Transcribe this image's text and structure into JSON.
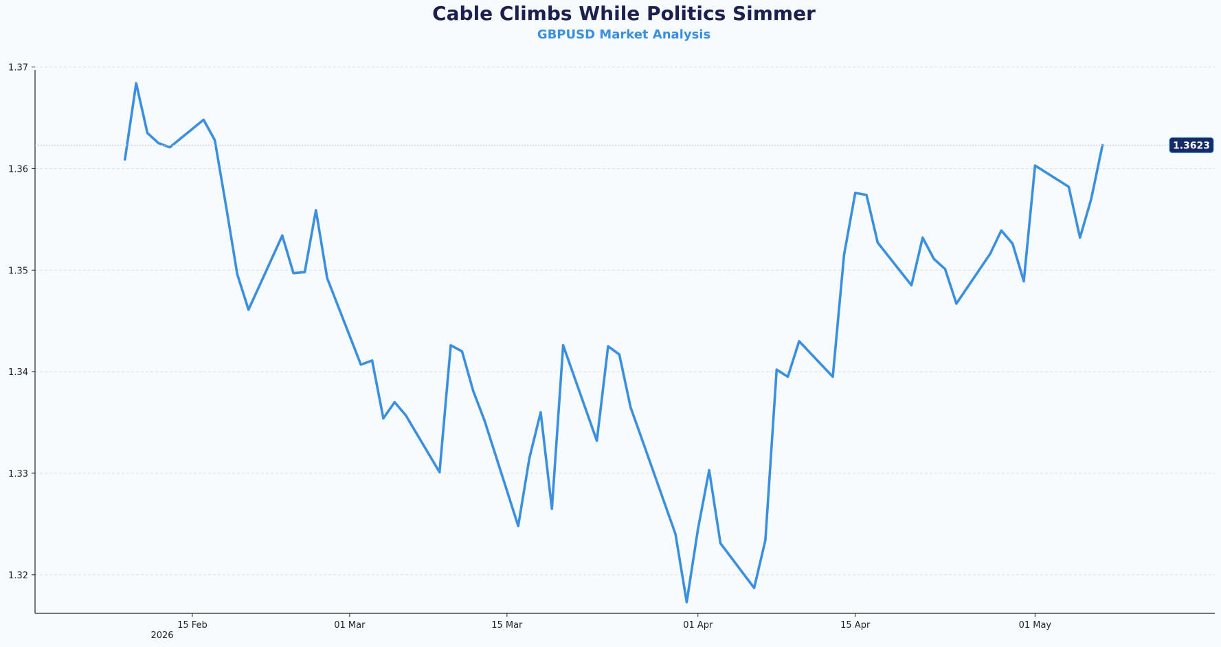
{
  "chart_data": {
    "type": "line",
    "title": "Cable Climbs While Politics Simmer",
    "subtitle": "GBPUSD Market Analysis",
    "xlabel": "",
    "ylabel": "",
    "year_label": "2026",
    "ylim": [
      1.3162,
      1.3697
    ],
    "xlim": [
      "2026-02-01",
      "2026-05-17"
    ],
    "grid": "horizontal dashed",
    "y_ticks": [
      "1.32",
      "1.33",
      "1.34",
      "1.35",
      "1.36",
      "1.37"
    ],
    "x_ticks": [
      {
        "date": "2026-02-15",
        "label": "15 Feb"
      },
      {
        "date": "2026-03-01",
        "label": "01 Mar"
      },
      {
        "date": "2026-03-15",
        "label": "15 Mar"
      },
      {
        "date": "2026-04-01",
        "label": "01 Apr"
      },
      {
        "date": "2026-04-15",
        "label": "15 Apr"
      },
      {
        "date": "2026-05-01",
        "label": "01 May"
      }
    ],
    "last_value_label": "1.3623",
    "colors": {
      "line": "#3a8fe0",
      "title": "#1c1f4f",
      "subtitle": "#3a8fe0",
      "badge": "#172a66",
      "grid": "#d6dde4",
      "axis": "#222222"
    },
    "series": [
      {
        "x": [
          "2026-02-09",
          "2026-02-10",
          "2026-02-11",
          "2026-02-12",
          "2026-02-13",
          "2026-02-16",
          "2026-02-17",
          "2026-02-18",
          "2026-02-19",
          "2026-02-20",
          "2026-02-23",
          "2026-02-24",
          "2026-02-25",
          "2026-02-26",
          "2026-02-27",
          "2026-03-02",
          "2026-03-03",
          "2026-03-04",
          "2026-03-05",
          "2026-03-06",
          "2026-03-09",
          "2026-03-10",
          "2026-03-11",
          "2026-03-12",
          "2026-03-13",
          "2026-03-16",
          "2026-03-17",
          "2026-03-18",
          "2026-03-19",
          "2026-03-20",
          "2026-03-23",
          "2026-03-24",
          "2026-03-25",
          "2026-03-26",
          "2026-03-27",
          "2026-03-30",
          "2026-03-31",
          "2026-04-01",
          "2026-04-02",
          "2026-04-03",
          "2026-04-06",
          "2026-04-07",
          "2026-04-08",
          "2026-04-09",
          "2026-04-10",
          "2026-04-13",
          "2026-04-14",
          "2026-04-15",
          "2026-04-16",
          "2026-04-17",
          "2026-04-20",
          "2026-04-21",
          "2026-04-22",
          "2026-04-23",
          "2026-04-24",
          "2026-04-27",
          "2026-04-28",
          "2026-04-29",
          "2026-04-30",
          "2026-05-01",
          "2026-05-04",
          "2026-05-05",
          "2026-05-06",
          "2026-05-07"
        ],
        "values": [
          1.3609,
          1.3684,
          1.3635,
          1.3625,
          1.3621,
          1.3648,
          1.3628,
          1.3563,
          1.3496,
          1.3461,
          1.3534,
          1.3497,
          1.3498,
          1.3559,
          1.3492,
          1.3407,
          1.3411,
          1.3354,
          1.337,
          1.3357,
          1.3301,
          1.3426,
          1.342,
          1.3381,
          1.3352,
          1.3248,
          1.3315,
          1.336,
          1.3265,
          1.3426,
          1.3332,
          1.3425,
          1.3417,
          1.3365,
          1.3334,
          1.324,
          1.3173,
          1.3245,
          1.3303,
          1.3231,
          1.3187,
          1.3234,
          1.3402,
          1.3395,
          1.343,
          1.3395,
          1.3515,
          1.3576,
          1.3574,
          1.3527,
          1.3485,
          1.3532,
          1.3511,
          1.3501,
          1.3467,
          1.3516,
          1.3539,
          1.3526,
          1.3489,
          1.3603,
          1.3582,
          1.3532,
          1.357,
          1.3623
        ]
      }
    ]
  }
}
